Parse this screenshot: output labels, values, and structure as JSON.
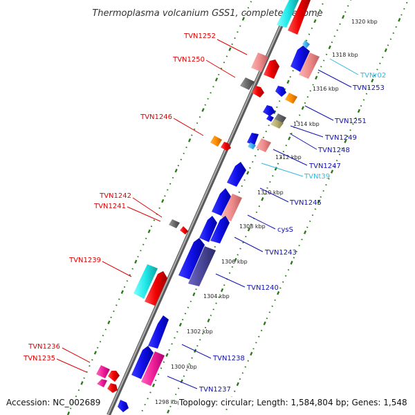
{
  "title": "Thermoplasma volcanium GSS1, complete genome",
  "footer": {
    "accession": "Accession: NC_002689",
    "summary": "Topology: circular; Length: 1,584,804 bp; Genes: 1,548"
  },
  "colors": {
    "backbone": "#8a8a8a",
    "tick": "#2a7a1a",
    "label_left": "#e00000",
    "label_right": "#1010b0",
    "label_rna": "#30b8e0"
  },
  "scale_ticks": [
    {
      "kbp": 1298,
      "label": "1298 kbp"
    },
    {
      "kbp": 1300,
      "label": "1300 kbp"
    },
    {
      "kbp": 1302,
      "label": "1302 kbp"
    },
    {
      "kbp": 1304,
      "label": "1304 kbp"
    },
    {
      "kbp": 1306,
      "label": "1306 kbp"
    },
    {
      "kbp": 1308,
      "label": "1308 kbp"
    },
    {
      "kbp": 1310,
      "label": "1310 kbp"
    },
    {
      "kbp": 1312,
      "label": "1312 kbp"
    },
    {
      "kbp": 1314,
      "label": "1314 kbp"
    },
    {
      "kbp": 1316,
      "label": "1316 kbp"
    },
    {
      "kbp": 1318,
      "label": "1318 kbp"
    },
    {
      "kbp": 1320,
      "label": "1320 kbp"
    }
  ],
  "gene_labels_left": [
    {
      "name": "TVN1252"
    },
    {
      "name": "TVN1250"
    },
    {
      "name": "TVN1246"
    },
    {
      "name": "TVN1242"
    },
    {
      "name": "TVN1241"
    },
    {
      "name": "TVN1239"
    },
    {
      "name": "TVN1236"
    },
    {
      "name": "TVN1235"
    }
  ],
  "gene_labels_right": [
    {
      "name": "TVNr02",
      "type": "rna"
    },
    {
      "name": "TVN1253",
      "type": "cds"
    },
    {
      "name": "TVN1251",
      "type": "cds"
    },
    {
      "name": "TVN1249",
      "type": "cds"
    },
    {
      "name": "TVN1248",
      "type": "cds"
    },
    {
      "name": "TVN1247",
      "type": "cds"
    },
    {
      "name": "TVNt39",
      "type": "rna"
    },
    {
      "name": "TVN1245",
      "type": "cds"
    },
    {
      "name": "cysS",
      "type": "cds"
    },
    {
      "name": "TVN1243",
      "type": "cds"
    },
    {
      "name": "TVN1240",
      "type": "cds"
    },
    {
      "name": "TVN1238",
      "type": "cds"
    },
    {
      "name": "TVN1237",
      "type": "cds"
    }
  ]
}
